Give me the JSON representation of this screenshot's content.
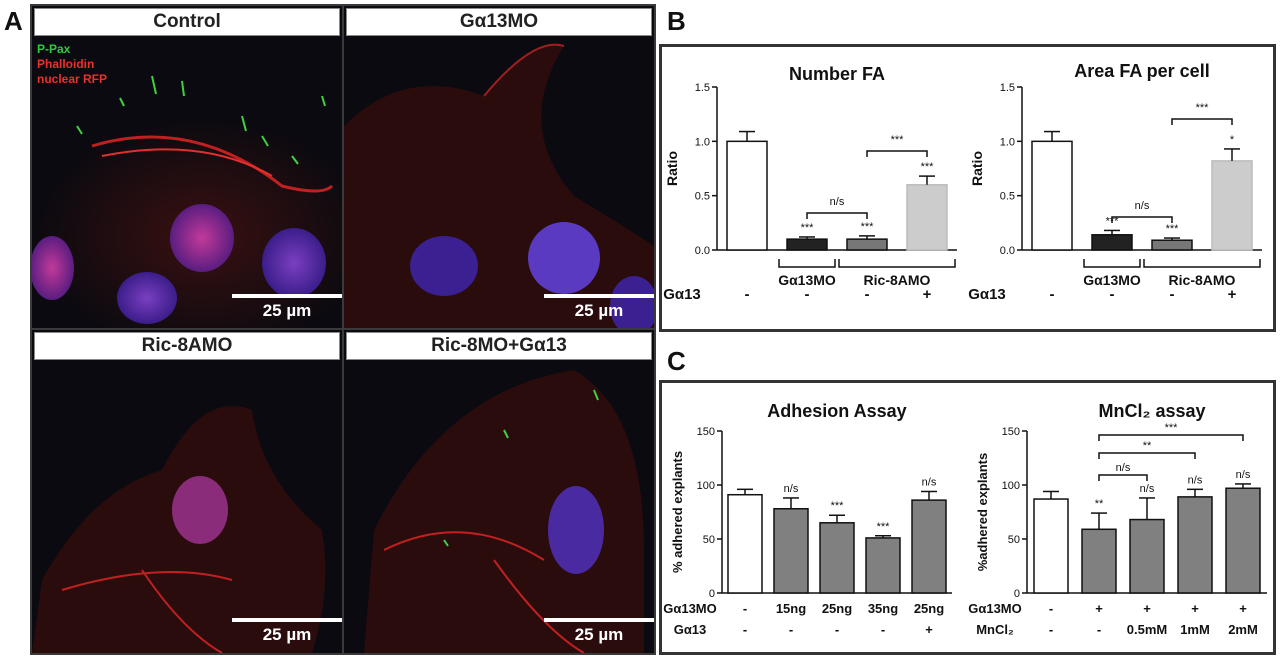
{
  "panel_letters": {
    "a": "A",
    "b": "B",
    "c": "C"
  },
  "panelA": {
    "images": [
      {
        "title": "Control",
        "scale": "25 µm"
      },
      {
        "title": "Gα13MO",
        "scale": "25 µm"
      },
      {
        "title": "Ric-8AMO",
        "scale": "25 µm"
      },
      {
        "title": "Ric-8MO+Gα13",
        "scale": "25 µm"
      }
    ],
    "legend": [
      {
        "text": "P-Pax",
        "color": "#2ecc40"
      },
      {
        "text": "Phalloidin",
        "color": "#e8322b"
      },
      {
        "text": "nuclear RFP",
        "color": "#e8322b"
      }
    ]
  },
  "chart_data": [
    {
      "type": "bar",
      "title": "Number FA",
      "ylabel": "Ratio",
      "ylim": [
        0,
        1.5
      ],
      "yticks": [
        0.0,
        0.5,
        1.0,
        1.5
      ],
      "values": [
        1.0,
        0.1,
        0.1,
        0.6
      ],
      "errors": [
        0.09,
        0.02,
        0.03,
        0.08
      ],
      "colors": [
        "#ffffff",
        "#222222",
        "#777777",
        "#cccccc"
      ],
      "annotations": [
        "",
        "***",
        "***",
        "***"
      ],
      "groups": [
        "Gα13MO",
        "Ric-8AMO"
      ],
      "row_label": "Gα13",
      "row_values": [
        "-",
        "-",
        "-",
        "+"
      ],
      "brackets": [
        {
          "from": 1,
          "to": 2,
          "label": "n/s"
        },
        {
          "from": 2,
          "to": 3,
          "label": "***"
        }
      ]
    },
    {
      "type": "bar",
      "title": "Area FA per cell",
      "ylabel": "Ratio",
      "ylim": [
        0,
        1.5
      ],
      "yticks": [
        0.0,
        0.5,
        1.0,
        1.5
      ],
      "values": [
        1.0,
        0.14,
        0.09,
        0.82
      ],
      "errors": [
        0.09,
        0.04,
        0.02,
        0.11
      ],
      "colors": [
        "#ffffff",
        "#222222",
        "#777777",
        "#cccccc"
      ],
      "annotations": [
        "",
        "***",
        "***",
        "*"
      ],
      "groups": [
        "Gα13MO",
        "Ric-8AMO"
      ],
      "row_label": "Gα13",
      "row_values": [
        "-",
        "-",
        "-",
        "+"
      ],
      "brackets": [
        {
          "from": 1,
          "to": 2,
          "label": "n/s"
        },
        {
          "from": 2,
          "to": 3,
          "label": "***"
        }
      ]
    },
    {
      "type": "bar",
      "title": "Adhesion Assay",
      "ylabel": "% adhered explants",
      "ylim": [
        0,
        150
      ],
      "yticks": [
        0,
        50,
        100,
        150
      ],
      "values": [
        91,
        78,
        65,
        51,
        86
      ],
      "errors": [
        5,
        10,
        7,
        2,
        8
      ],
      "colors": [
        "#ffffff",
        "#808080",
        "#808080",
        "#808080",
        "#808080"
      ],
      "annotations": [
        "",
        "n/s",
        "***",
        "***",
        "n/s"
      ],
      "rows": [
        {
          "label": "Gα13MO",
          "values": [
            "-",
            "15ng",
            "25ng",
            "35ng",
            "25ng"
          ]
        },
        {
          "label": "Gα13",
          "values": [
            "-",
            "-",
            "-",
            "-",
            "+"
          ]
        }
      ]
    },
    {
      "type": "bar",
      "title": "MnCl₂ assay",
      "ylabel": "%adhered explants",
      "ylim": [
        0,
        150
      ],
      "yticks": [
        0,
        50,
        100,
        150
      ],
      "values": [
        87,
        59,
        68,
        89,
        97
      ],
      "errors": [
        7,
        15,
        20,
        7,
        4
      ],
      "colors": [
        "#ffffff",
        "#808080",
        "#808080",
        "#808080",
        "#808080"
      ],
      "annotations": [
        "",
        "**",
        "n/s",
        "n/s",
        "n/s"
      ],
      "rows": [
        {
          "label": "Gα13MO",
          "values": [
            "-",
            "+",
            "+",
            "+",
            "+"
          ]
        },
        {
          "label": "MnCl₂",
          "values": [
            "-",
            "-",
            "0.5mM",
            "1mM",
            "2mM"
          ]
        }
      ],
      "brackets": [
        {
          "from": 1,
          "to": 2,
          "label": "n/s"
        },
        {
          "from": 1,
          "to": 3,
          "label": "**"
        },
        {
          "from": 1,
          "to": 4,
          "label": "***"
        }
      ]
    }
  ]
}
